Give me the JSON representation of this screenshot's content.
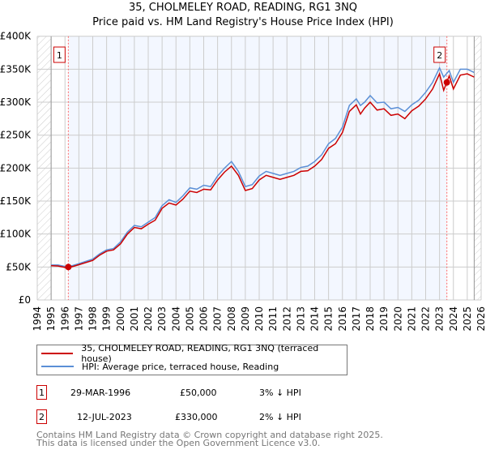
{
  "chart_data": {
    "type": "line",
    "title": "35, CHOLMELEY ROAD, READING, RG1 3NQ",
    "subtitle": "Price paid vs. HM Land Registry's House Price Index (HPI)",
    "xlim": [
      1994,
      2026
    ],
    "ylim": [
      0,
      400000
    ],
    "yticks": [
      0,
      50000,
      100000,
      150000,
      200000,
      250000,
      300000,
      350000,
      400000
    ],
    "ytick_labels": [
      "£0",
      "£50K",
      "£100K",
      "£150K",
      "£200K",
      "£250K",
      "£300K",
      "£350K",
      "£400K"
    ],
    "xticks": [
      1994,
      1995,
      1996,
      1997,
      1998,
      1999,
      2000,
      2001,
      2002,
      2003,
      2004,
      2005,
      2006,
      2007,
      2008,
      2009,
      2010,
      2011,
      2012,
      2013,
      2014,
      2015,
      2016,
      2017,
      2018,
      2019,
      2020,
      2021,
      2022,
      2023,
      2024,
      2025,
      2026
    ],
    "grid": true,
    "hpi_x": [
      1995,
      1995.5,
      1996.2,
      1997,
      1998,
      1998.5,
      1999,
      1999.5,
      2000,
      2000.5,
      2001,
      2001.5,
      2002,
      2002.5,
      2003,
      2003.5,
      2004,
      2004.5,
      2005,
      2005.5,
      2006,
      2006.5,
      2007,
      2007.5,
      2008,
      2008.5,
      2009,
      2009.5,
      2010,
      2010.5,
      2011,
      2011.5,
      2012,
      2012.5,
      2013,
      2013.5,
      2014,
      2014.5,
      2015,
      2015.5,
      2016,
      2016.5,
      2017,
      2017.3,
      2017.6,
      2018,
      2018.5,
      2019,
      2019.5,
      2020,
      2020.5,
      2021,
      2021.5,
      2022,
      2022.5,
      2023,
      2023.3,
      2023.7,
      2024,
      2024.5,
      2025,
      2025.5
    ],
    "series": [
      {
        "name": "35, CHOLMELEY ROAD, READING, RG1 3NQ (terraced house)",
        "color": "#cc0000",
        "values": [
          52000,
          51500,
          48500,
          53500,
          60000,
          68000,
          74000,
          76000,
          85000,
          100000,
          110000,
          108000,
          115000,
          121000,
          139000,
          147000,
          144000,
          153000,
          165000,
          163000,
          168000,
          167000,
          182000,
          194000,
          203000,
          189000,
          166000,
          169000,
          182000,
          189000,
          186000,
          183000,
          186000,
          189000,
          195000,
          196000,
          203000,
          213000,
          230000,
          237000,
          254000,
          286000,
          296000,
          282000,
          291000,
          300000,
          288000,
          290000,
          280000,
          282000,
          275000,
          287000,
          294000,
          305000,
          320000,
          343000,
          318000,
          340000,
          320000,
          341000,
          343000,
          338000
        ]
      },
      {
        "name": "HPI: Average price, terraced house, Reading",
        "color": "#5b8fd6",
        "values": [
          53000,
          53000,
          50000,
          55000,
          62000,
          70000,
          76000,
          78000,
          88000,
          103000,
          113000,
          111000,
          118000,
          125000,
          143000,
          152000,
          148000,
          158000,
          170000,
          168000,
          174000,
          172000,
          188000,
          200000,
          210000,
          195000,
          172000,
          175000,
          188000,
          195000,
          192000,
          189000,
          192000,
          195000,
          201000,
          203000,
          210000,
          220000,
          237000,
          245000,
          262000,
          295000,
          305000,
          295000,
          300000,
          310000,
          299000,
          300000,
          290000,
          292000,
          286000,
          296000,
          303000,
          315000,
          330000,
          352000,
          338000,
          348000,
          330000,
          350000,
          350000,
          345000
        ]
      }
    ],
    "sales": [
      {
        "label": "1",
        "year": 1996.24,
        "price": 50000
      },
      {
        "label": "2",
        "year": 2023.53,
        "price": 330000
      }
    ]
  },
  "legend": [
    "35, CHOLMELEY ROAD, READING, RG1 3NQ (terraced house)",
    "HPI: Average price, terraced house, Reading"
  ],
  "transactions": [
    {
      "num": "1",
      "date": "29-MAR-1996",
      "price": "£50,000",
      "hpi": "3% ↓ HPI"
    },
    {
      "num": "2",
      "date": "12-JUL-2023",
      "price": "£330,000",
      "hpi": "2% ↓ HPI"
    }
  ],
  "footer": [
    "Contains HM Land Registry data © Crown copyright and database right 2025.",
    "This data is licensed under the Open Government Licence v3.0."
  ]
}
